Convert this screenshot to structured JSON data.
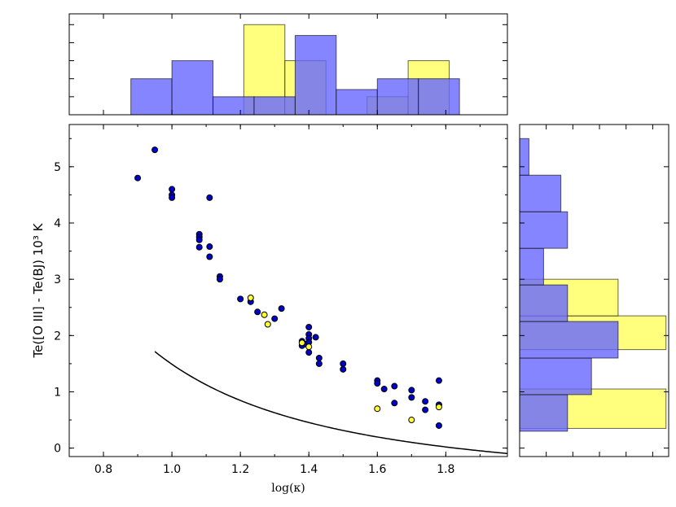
{
  "chart_data": {
    "type": "scatter",
    "xlabel": "log(κ)",
    "ylabel": "Te([O III] - Te(BJ) 10³ K",
    "xlim": [
      0.7,
      1.98
    ],
    "ylim": [
      -0.15,
      5.75
    ],
    "xticks": [
      "0.8",
      "1.0",
      "1.2",
      "1.4",
      "1.6",
      "1.8"
    ],
    "yticks": [
      "0",
      "1",
      "2",
      "3",
      "4",
      "5"
    ],
    "colors": {
      "blue": "#0000cc",
      "yellow": "#ffff33",
      "blue_hist": "#6666ff",
      "yellow_hist": "#ffff66",
      "curve": "#000000"
    },
    "series": [
      {
        "name": "blue points",
        "points": [
          [
            0.9,
            4.8
          ],
          [
            0.95,
            5.3
          ],
          [
            1.0,
            4.6
          ],
          [
            1.0,
            4.5
          ],
          [
            1.0,
            4.45
          ],
          [
            1.08,
            3.8
          ],
          [
            1.08,
            3.75
          ],
          [
            1.08,
            3.7
          ],
          [
            1.08,
            3.57
          ],
          [
            1.11,
            4.45
          ],
          [
            1.11,
            3.58
          ],
          [
            1.11,
            3.4
          ],
          [
            1.14,
            3.05
          ],
          [
            1.14,
            3.0
          ],
          [
            1.2,
            2.65
          ],
          [
            1.23,
            2.6
          ],
          [
            1.25,
            2.42
          ],
          [
            1.3,
            2.3
          ],
          [
            1.32,
            2.48
          ],
          [
            1.38,
            1.9
          ],
          [
            1.38,
            1.82
          ],
          [
            1.39,
            1.85
          ],
          [
            1.4,
            2.15
          ],
          [
            1.4,
            2.02
          ],
          [
            1.4,
            1.95
          ],
          [
            1.4,
            1.88
          ],
          [
            1.4,
            1.7
          ],
          [
            1.42,
            1.97
          ],
          [
            1.43,
            1.6
          ],
          [
            1.43,
            1.5
          ],
          [
            1.5,
            1.5
          ],
          [
            1.5,
            1.4
          ],
          [
            1.6,
            1.2
          ],
          [
            1.6,
            1.15
          ],
          [
            1.62,
            1.05
          ],
          [
            1.65,
            1.1
          ],
          [
            1.65,
            0.8
          ],
          [
            1.7,
            1.03
          ],
          [
            1.7,
            0.9
          ],
          [
            1.74,
            0.83
          ],
          [
            1.74,
            0.68
          ],
          [
            1.78,
            1.2
          ],
          [
            1.78,
            0.77
          ],
          [
            1.78,
            0.4
          ]
        ]
      },
      {
        "name": "yellow points",
        "points": [
          [
            1.23,
            2.67
          ],
          [
            1.27,
            2.37
          ],
          [
            1.28,
            2.2
          ],
          [
            1.38,
            1.87
          ],
          [
            1.4,
            1.8
          ],
          [
            1.6,
            0.7
          ],
          [
            1.7,
            0.5
          ],
          [
            1.78,
            0.73
          ]
        ]
      }
    ],
    "fit_curve": {
      "description": "decaying fit curve",
      "a": -0.67,
      "b": 2.16,
      "c": 1.94,
      "x_start": 0.95,
      "x_end": 1.98
    },
    "top_histogram": {
      "blue": [
        {
          "x0": 0.88,
          "x1": 1.0,
          "count": 2
        },
        {
          "x0": 1.0,
          "x1": 1.12,
          "count": 3
        },
        {
          "x0": 1.12,
          "x1": 1.24,
          "count": 1
        },
        {
          "x0": 1.24,
          "x1": 1.36,
          "count": 1
        },
        {
          "x0": 1.36,
          "x1": 1.48,
          "count": 4.4
        },
        {
          "x0": 1.48,
          "x1": 1.6,
          "count": 1.4
        },
        {
          "x0": 1.6,
          "x1": 1.72,
          "count": 2
        },
        {
          "x0": 1.72,
          "x1": 1.84,
          "count": 2
        }
      ],
      "yellow": [
        {
          "x0": 1.21,
          "x1": 1.33,
          "count": 5
        },
        {
          "x0": 1.33,
          "x1": 1.45,
          "count": 3
        },
        {
          "x0": 1.45,
          "x1": 1.57,
          "count": 0
        },
        {
          "x0": 1.57,
          "x1": 1.69,
          "count": 1
        },
        {
          "x0": 1.69,
          "x1": 1.81,
          "count": 3
        }
      ],
      "max": 5.6
    },
    "right_histogram": {
      "blue": [
        {
          "y0": 0.3,
          "y1": 0.95,
          "count": 1.8
        },
        {
          "y0": 0.95,
          "y1": 1.6,
          "count": 2.7
        },
        {
          "y0": 1.6,
          "y1": 2.25,
          "count": 3.7
        },
        {
          "y0": 2.25,
          "y1": 2.9,
          "count": 1.8
        },
        {
          "y0": 2.9,
          "y1": 3.55,
          "count": 0.9
        },
        {
          "y0": 3.55,
          "y1": 4.2,
          "count": 1.8
        },
        {
          "y0": 4.2,
          "y1": 4.85,
          "count": 1.55
        },
        {
          "y0": 4.85,
          "y1": 5.5,
          "count": 0.35
        }
      ],
      "yellow": [
        {
          "y0": 0.35,
          "y1": 1.05,
          "count": 5.5
        },
        {
          "y0": 1.05,
          "y1": 1.75,
          "count": 0
        },
        {
          "y0": 1.75,
          "y1": 2.35,
          "count": 5.5
        },
        {
          "y0": 2.35,
          "y1": 3.0,
          "count": 3.7
        }
      ],
      "max": 5.6
    }
  }
}
